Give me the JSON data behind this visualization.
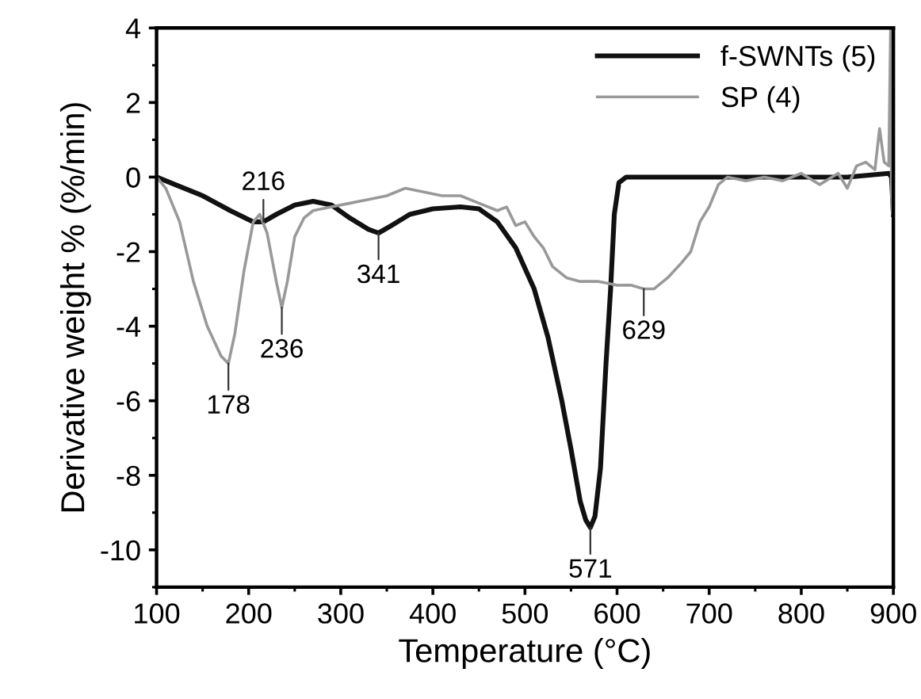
{
  "chart_data": {
    "type": "line",
    "xlabel": "Temperature (°C)",
    "ylabel": "Derivative weight % (%/min)",
    "xlim": [
      100,
      900
    ],
    "ylim": [
      -11,
      4
    ],
    "xticks": [
      100,
      200,
      300,
      400,
      500,
      600,
      700,
      800,
      900
    ],
    "yticks": [
      -10,
      -8,
      -6,
      -4,
      -2,
      0,
      2,
      4
    ],
    "legend": "top right",
    "grid": false,
    "marker": "none",
    "line_style": "solid",
    "series": [
      {
        "name": "f-SWNTs (5)",
        "color": "#111111",
        "x": [
          100,
          120,
          150,
          180,
          205,
          216,
          230,
          250,
          270,
          290,
          310,
          330,
          341,
          355,
          375,
          400,
          430,
          450,
          470,
          490,
          510,
          525,
          540,
          550,
          560,
          566,
          571,
          576,
          582,
          588,
          593,
          597,
          602,
          610,
          650,
          700,
          750,
          800,
          850,
          895,
          898,
          900
        ],
        "values": [
          0,
          -0.2,
          -0.5,
          -0.9,
          -1.2,
          -1.2,
          -1.0,
          -0.75,
          -0.65,
          -0.75,
          -1.1,
          -1.4,
          -1.5,
          -1.3,
          -1.0,
          -0.85,
          -0.8,
          -0.85,
          -1.2,
          -1.9,
          -3.0,
          -4.3,
          -6.0,
          -7.3,
          -8.7,
          -9.2,
          -9.4,
          -9.1,
          -7.8,
          -5.0,
          -3.0,
          -1.0,
          -0.15,
          0,
          0,
          0,
          0,
          0,
          0,
          0.1,
          0,
          -1.0
        ]
      },
      {
        "name": "SP (4)",
        "color": "#999999",
        "x": [
          100,
          110,
          125,
          140,
          155,
          170,
          178,
          185,
          195,
          205,
          212,
          220,
          230,
          236,
          242,
          250,
          260,
          270,
          290,
          310,
          330,
          350,
          370,
          390,
          410,
          430,
          450,
          470,
          480,
          490,
          500,
          510,
          520,
          530,
          545,
          560,
          580,
          600,
          615,
          629,
          640,
          655,
          670,
          680,
          690,
          700,
          710,
          720,
          740,
          760,
          780,
          800,
          820,
          840,
          850,
          860,
          870,
          880,
          885,
          890,
          895,
          897,
          898,
          899,
          900
        ],
        "values": [
          0,
          -0.3,
          -1.2,
          -2.8,
          -4.0,
          -4.8,
          -5.0,
          -4.2,
          -2.5,
          -1.2,
          -1.0,
          -1.5,
          -2.8,
          -3.5,
          -2.8,
          -1.6,
          -1.1,
          -0.9,
          -0.8,
          -0.7,
          -0.6,
          -0.5,
          -0.3,
          -0.4,
          -0.5,
          -0.5,
          -0.7,
          -0.9,
          -0.8,
          -1.3,
          -1.2,
          -1.6,
          -1.9,
          -2.4,
          -2.7,
          -2.8,
          -2.8,
          -2.9,
          -2.9,
          -3.0,
          -3.0,
          -2.7,
          -2.3,
          -2.0,
          -1.2,
          -0.8,
          -0.2,
          0,
          -0.1,
          0,
          -0.1,
          0.1,
          -0.2,
          0.1,
          -0.3,
          0.3,
          0.4,
          0.2,
          1.3,
          0.4,
          0.3,
          4.0,
          -0.5,
          -1.0,
          -0.8
        ]
      }
    ],
    "annotations": [
      {
        "text": "216",
        "x": 216,
        "y": -1.2
      },
      {
        "text": "341",
        "x": 341,
        "y": -1.5
      },
      {
        "text": "178",
        "x": 178,
        "y": -5.0
      },
      {
        "text": "236",
        "x": 236,
        "y": -3.5
      },
      {
        "text": "571",
        "x": 571,
        "y": -9.4
      },
      {
        "text": "629",
        "x": 629,
        "y": -3.0
      }
    ]
  }
}
